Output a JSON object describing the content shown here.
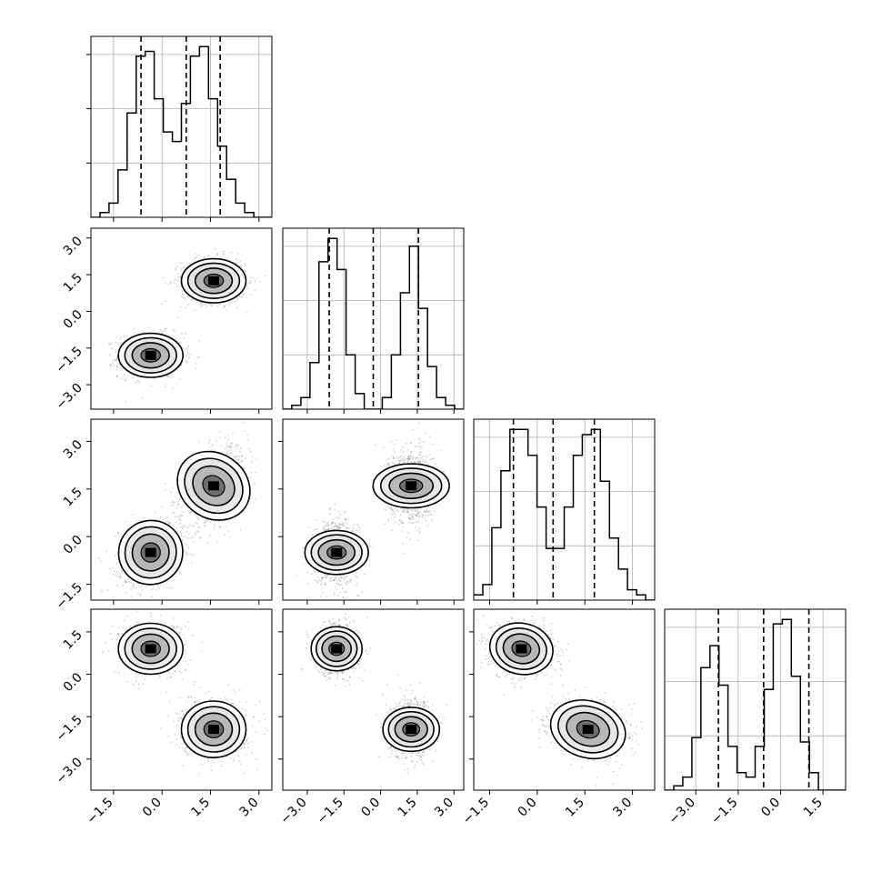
{
  "chart_data": {
    "type": "corner",
    "n_params": 4,
    "colors": {
      "hist": "#000000",
      "quantile": "#000000",
      "grid": "#b0b0b0",
      "scatter": "#000000",
      "density_max": "#000000"
    },
    "grid": true,
    "x_tick_labels": [
      [
        "-1.5",
        "0.0",
        "1.5",
        "3.0"
      ],
      [
        "-3.0",
        "-1.5",
        "0.0",
        "1.5",
        "3.0"
      ],
      [
        "-1.5",
        "0.0",
        "1.5",
        "3.0"
      ],
      [
        "-3.0",
        "-1.5",
        "0.0",
        "1.5"
      ]
    ],
    "y_tick_labels": {
      "row1": [
        "3.0",
        "1.5",
        "0.0",
        "-1.5",
        "-3.0"
      ],
      "row2": [
        "3.0",
        "1.5",
        "0.0",
        "-1.5"
      ],
      "row3": [
        "1.5",
        "0.0",
        "-1.5",
        "-3.0"
      ]
    },
    "axis_ranges": [
      [
        -2.2,
        3.4
      ],
      [
        -4.0,
        3.4
      ],
      [
        -2.0,
        3.7
      ],
      [
        -4.1,
        2.3
      ]
    ],
    "quantiles": [
      [
        -0.65,
        0.75,
        1.8
      ],
      [
        -2.1,
        -0.3,
        1.55
      ],
      [
        -0.75,
        0.5,
        1.8
      ],
      [
        -2.2,
        -0.6,
        1.0
      ]
    ],
    "histograms": [
      {
        "bin_edges_range": [
          -2.2,
          3.4
        ],
        "counts": [
          0,
          1,
          3,
          10,
          22,
          34,
          35,
          25,
          18,
          16,
          24,
          34,
          36,
          25,
          15,
          8,
          3,
          1,
          0,
          0
        ]
      },
      {
        "bin_edges_range": [
          -4.0,
          3.4
        ],
        "counts": [
          0,
          1,
          3,
          12,
          38,
          44,
          36,
          14,
          4,
          0,
          0,
          3,
          14,
          30,
          42,
          26,
          11,
          3,
          1,
          0
        ]
      },
      {
        "bin_edges_range": [
          -2.0,
          3.7
        ],
        "counts": [
          1,
          3,
          14,
          25,
          33,
          33,
          28,
          18,
          10,
          10,
          18,
          28,
          32,
          33,
          23,
          12,
          6,
          2,
          1,
          0
        ]
      },
      {
        "bin_edges_range": [
          -4.1,
          2.3
        ],
        "counts": [
          0,
          1,
          3,
          12,
          28,
          33,
          24,
          10,
          4,
          3,
          10,
          23,
          38,
          39,
          26,
          11,
          4,
          0,
          0,
          0
        ]
      }
    ],
    "clusters": [
      {
        "means": [
          -0.35,
          -1.8,
          -0.5,
          0.9
        ],
        "sds": [
          0.5,
          0.45,
          0.5,
          0.45
        ],
        "corr": {
          "0-2": 0.25,
          "2-3": -0.1
        }
      },
      {
        "means": [
          1.6,
          1.25,
          1.6,
          -1.95
        ],
        "sds": [
          0.5,
          0.45,
          0.6,
          0.5
        ],
        "corr": {
          "0-2": 0.45,
          "2-3": -0.2
        }
      }
    ]
  }
}
